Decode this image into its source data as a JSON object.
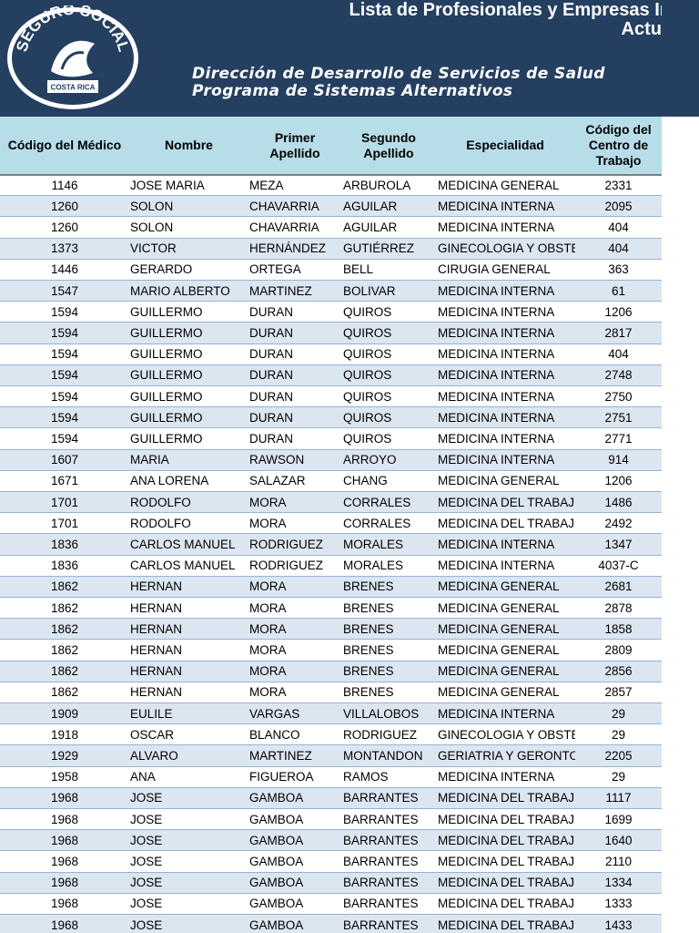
{
  "header": {
    "title_line1": "Lista de Profesionales y Empresas In",
    "title_line2": "Actu",
    "logo_top": "SEGURO SOCIAL",
    "logo_bottom": "COSTA RICA",
    "subtitle_line1": "Dirección de Desarrollo de Servicios de Salud",
    "subtitle_line2": "Programa de Sistemas Alternativos"
  },
  "table": {
    "columns": [
      "Código del Médico",
      "Nombre",
      "Primer Apellido",
      "Segundo Apellido",
      "Especialidad",
      "Código del Centro de Trabajo"
    ],
    "rows": [
      [
        "1146",
        "JOSE MARIA",
        "MEZA",
        "ARBUROLA",
        "MEDICINA GENERAL",
        "2331"
      ],
      [
        "1260",
        "SOLON",
        "CHAVARRIA",
        "AGUILAR",
        "MEDICINA INTERNA",
        "2095"
      ],
      [
        "1260",
        "SOLON",
        "CHAVARRIA",
        "AGUILAR",
        "MEDICINA INTERNA",
        "404"
      ],
      [
        "1373",
        "VICTOR",
        "HERNÁNDEZ",
        "GUTIÉRREZ",
        "GINECOLOGIA Y OBSTE",
        "404"
      ],
      [
        "1446",
        "GERARDO",
        "ORTEGA",
        "BELL",
        "CIRUGIA GENERAL",
        "363"
      ],
      [
        "1547",
        "MARIO ALBERTO",
        "MARTINEZ",
        "BOLIVAR",
        "MEDICINA INTERNA",
        "61"
      ],
      [
        "1594",
        "GUILLERMO",
        "DURAN",
        "QUIROS",
        "MEDICINA INTERNA",
        "1206"
      ],
      [
        "1594",
        "GUILLERMO",
        "DURAN",
        "QUIROS",
        "MEDICINA INTERNA",
        "2817"
      ],
      [
        "1594",
        "GUILLERMO",
        "DURAN",
        "QUIROS",
        "MEDICINA INTERNA",
        "404"
      ],
      [
        "1594",
        "GUILLERMO",
        "DURAN",
        "QUIROS",
        "MEDICINA INTERNA",
        "2748"
      ],
      [
        "1594",
        "GUILLERMO",
        "DURAN",
        "QUIROS",
        "MEDICINA INTERNA",
        "2750"
      ],
      [
        "1594",
        "GUILLERMO",
        "DURAN",
        "QUIROS",
        "MEDICINA INTERNA",
        "2751"
      ],
      [
        "1594",
        "GUILLERMO",
        "DURAN",
        "QUIROS",
        "MEDICINA INTERNA",
        "2771"
      ],
      [
        "1607",
        "MARIA",
        "RAWSON",
        "ARROYO",
        "MEDICINA INTERNA",
        "914"
      ],
      [
        "1671",
        "ANA LORENA",
        "SALAZAR",
        "CHANG",
        "MEDICINA GENERAL",
        "1206"
      ],
      [
        "1701",
        "RODOLFO",
        "MORA",
        "CORRALES",
        "MEDICINA DEL TRABAJ",
        "1486"
      ],
      [
        "1701",
        "RODOLFO",
        "MORA",
        "CORRALES",
        "MEDICINA DEL TRABAJ",
        "2492"
      ],
      [
        "1836",
        "CARLOS MANUEL",
        "RODRIGUEZ",
        "MORALES",
        "MEDICINA INTERNA",
        "1347"
      ],
      [
        "1836",
        "CARLOS MANUEL",
        "RODRIGUEZ",
        "MORALES",
        "MEDICINA INTERNA",
        "4037-C"
      ],
      [
        "1862",
        "HERNAN",
        "MORA",
        "BRENES",
        "MEDICINA GENERAL",
        "2681"
      ],
      [
        "1862",
        "HERNAN",
        "MORA",
        "BRENES",
        "MEDICINA GENERAL",
        "2878"
      ],
      [
        "1862",
        "HERNAN",
        "MORA",
        "BRENES",
        "MEDICINA GENERAL",
        "1858"
      ],
      [
        "1862",
        "HERNAN",
        "MORA",
        "BRENES",
        "MEDICINA GENERAL",
        "2809"
      ],
      [
        "1862",
        "HERNAN",
        "MORA",
        "BRENES",
        "MEDICINA GENERAL",
        "2856"
      ],
      [
        "1862",
        "HERNAN",
        "MORA",
        "BRENES",
        "MEDICINA GENERAL",
        "2857"
      ],
      [
        "1909",
        "EULILE",
        "VARGAS",
        "VILLALOBOS",
        "MEDICINA INTERNA",
        "29"
      ],
      [
        "1918",
        "OSCAR",
        "BLANCO",
        "RODRIGUEZ",
        "GINECOLOGIA Y OBSTE",
        "29"
      ],
      [
        "1929",
        "ALVARO",
        "MARTINEZ",
        "MONTANDON",
        "GERIATRIA Y GERONTO",
        "2205"
      ],
      [
        "1958",
        "ANA",
        "FIGUEROA",
        "RAMOS",
        "MEDICINA INTERNA",
        "29"
      ],
      [
        "1968",
        "JOSE",
        "GAMBOA",
        "BARRANTES",
        "MEDICINA DEL TRABAJ",
        "1117"
      ],
      [
        "1968",
        "JOSE",
        "GAMBOA",
        "BARRANTES",
        "MEDICINA DEL TRABAJ",
        "1699"
      ],
      [
        "1968",
        "JOSE",
        "GAMBOA",
        "BARRANTES",
        "MEDICINA DEL TRABAJ",
        "1640"
      ],
      [
        "1968",
        "JOSE",
        "GAMBOA",
        "BARRANTES",
        "MEDICINA DEL TRABAJ",
        "2110"
      ],
      [
        "1968",
        "JOSE",
        "GAMBOA",
        "BARRANTES",
        "MEDICINA DEL TRABAJ",
        "1334"
      ],
      [
        "1968",
        "JOSE",
        "GAMBOA",
        "BARRANTES",
        "MEDICINA DEL TRABAJ",
        "1333"
      ],
      [
        "1968",
        "JOSE",
        "GAMBOA",
        "BARRANTES",
        "MEDICINA DEL TRABAJ",
        "1433"
      ]
    ]
  }
}
